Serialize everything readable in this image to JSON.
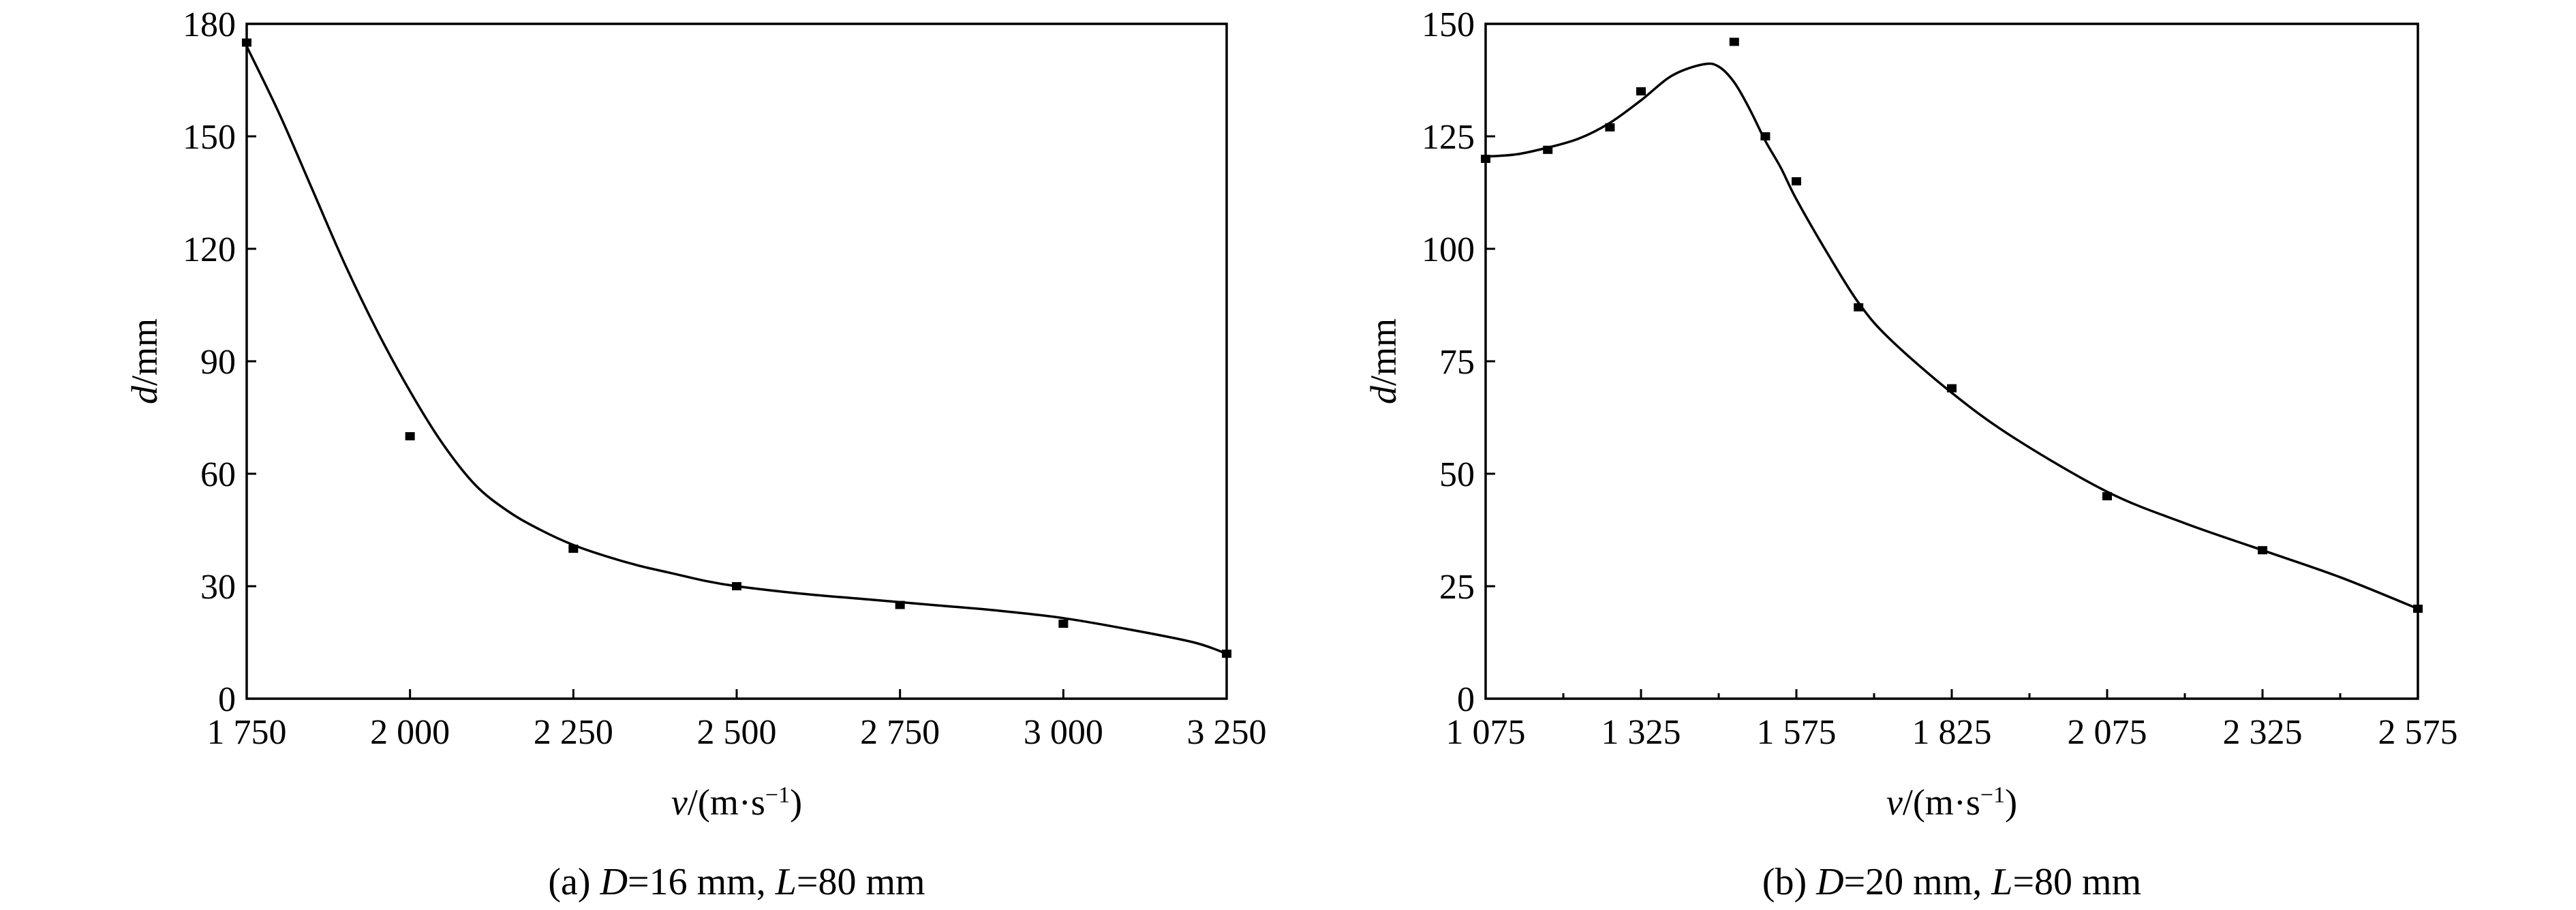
{
  "chart_data": [
    {
      "type": "scatter",
      "xlabel": "v/(m·s⁻¹)",
      "xlabel_parts": [
        "v",
        "/(m·s",
        "−1",
        ")"
      ],
      "ylabel": "d/mm",
      "ylabel_parts": [
        "d",
        "/mm"
      ],
      "caption": "(a) D=16 mm, L=80 mm",
      "caption_parts": [
        "(a) ",
        "D",
        "=16 mm, ",
        "L",
        "=80 mm"
      ],
      "xlim": [
        1750,
        3250
      ],
      "ylim": [
        0,
        180
      ],
      "xticks": [
        1750,
        2000,
        2250,
        2500,
        2750,
        3000,
        3250
      ],
      "xtick_labels": [
        "1 750",
        "2 000",
        "2 250",
        "2 500",
        "2 750",
        "3 000",
        "3 250"
      ],
      "yticks": [
        0,
        30,
        60,
        90,
        120,
        150,
        180
      ],
      "ytick_labels": [
        "0",
        "30",
        "60",
        "90",
        "120",
        "150",
        "180"
      ],
      "points": {
        "x": [
          1750,
          2000,
          2250,
          2500,
          2750,
          3000,
          3250
        ],
        "y": [
          175,
          70,
          40,
          30,
          25,
          20,
          12
        ]
      },
      "fit_curve": {
        "x": [
          1750,
          1800,
          1850,
          1900,
          1950,
          2000,
          2050,
          2100,
          2150,
          2200,
          2250,
          2300,
          2350,
          2400,
          2450,
          2500,
          2600,
          2700,
          2800,
          2900,
          3000,
          3100,
          3200,
          3250
        ],
        "y": [
          174,
          156,
          136,
          116,
          98,
          82,
          68,
          57,
          50,
          45,
          41,
          38,
          35.5,
          33.5,
          31.5,
          30,
          28,
          26.5,
          25,
          23.5,
          21.5,
          18.5,
          15,
          12
        ]
      },
      "grid": false,
      "legend": "none"
    },
    {
      "type": "scatter",
      "xlabel": "v/(m·s⁻¹)",
      "xlabel_parts": [
        "v",
        "/(m·s",
        "−1",
        ")"
      ],
      "ylabel": "d/mm",
      "ylabel_parts": [
        "d",
        "/mm"
      ],
      "caption": "(b) D=20 mm, L=80 mm",
      "caption_parts": [
        "(b) ",
        "D",
        "=20 mm, ",
        "L",
        "=80 mm"
      ],
      "xlim": [
        1075,
        2575
      ],
      "ylim": [
        0,
        150
      ],
      "xticks": [
        1075,
        1325,
        1575,
        1825,
        2075,
        2325,
        2575
      ],
      "xtick_labels": [
        "1 075",
        "1 325",
        "1 575",
        "1 825",
        "2 075",
        "2 325",
        "2 575"
      ],
      "minor_xticks": [
        1200,
        1450,
        1700,
        1950,
        2200,
        2450
      ],
      "yticks": [
        0,
        25,
        50,
        75,
        100,
        125,
        150
      ],
      "ytick_labels": [
        "0",
        "25",
        "50",
        "75",
        "100",
        "125",
        "150"
      ],
      "points": {
        "x": [
          1075,
          1175,
          1275,
          1325,
          1475,
          1525,
          1575,
          1675,
          1825,
          2075,
          2325,
          2575
        ],
        "y": [
          120,
          122,
          127,
          135,
          146,
          125,
          115,
          87,
          69,
          45,
          33,
          20
        ]
      },
      "fit_curve": {
        "x": [
          1075,
          1125,
          1175,
          1225,
          1275,
          1325,
          1375,
          1425,
          1450,
          1475,
          1500,
          1525,
          1550,
          1575,
          1625,
          1675,
          1725,
          1825,
          1925,
          2075,
          2200,
          2325,
          2450,
          2575
        ],
        "y": [
          120.5,
          121,
          122.5,
          124.5,
          128,
          133,
          138.5,
          141,
          140.5,
          137,
          131,
          124,
          118,
          111,
          99,
          88,
          80,
          68,
          58,
          46,
          39,
          33,
          27,
          20
        ]
      },
      "grid": false,
      "legend": "none"
    }
  ]
}
